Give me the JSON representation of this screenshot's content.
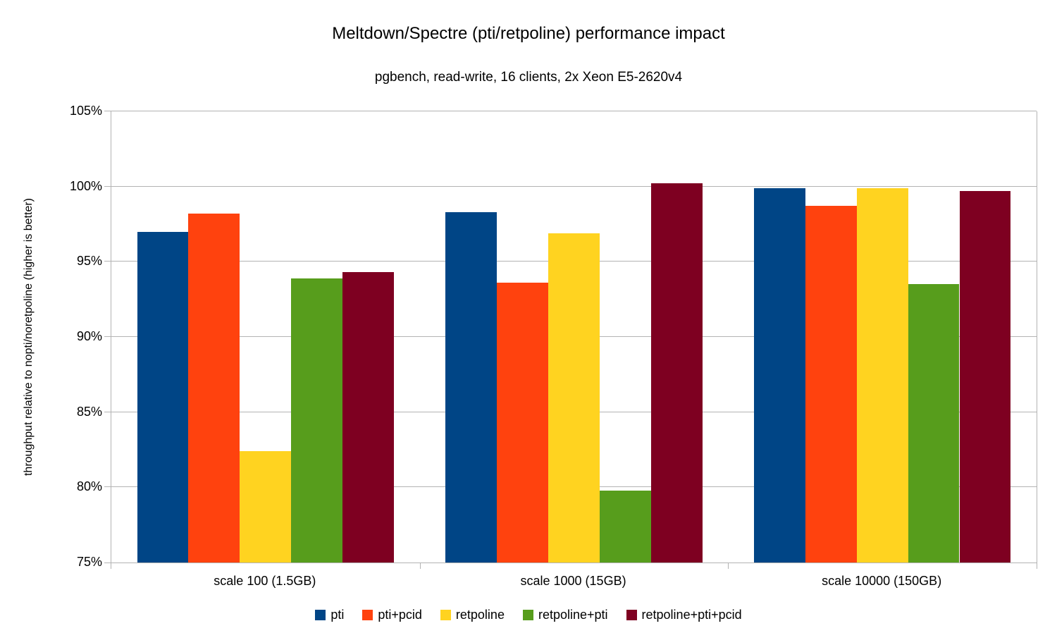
{
  "chart_data": {
    "type": "bar",
    "title": "Meltdown/Spectre (pti/retpoline) performance impact",
    "subtitle": "pgbench, read-write, 16 clients, 2x Xeon E5-2620v4",
    "ylabel": "throughput relative to nopti/noretpoline (higher is better)",
    "xlabel": "",
    "ylim": [
      75,
      105
    ],
    "ytick_step": 5,
    "ytick_labels": [
      "75%",
      "80%",
      "85%",
      "90%",
      "95%",
      "100%",
      "105%"
    ],
    "grid": true,
    "legend_position": "bottom",
    "categories": [
      "scale 100 (1.5GB)",
      "scale 1000 (15GB)",
      "scale 10000 (150GB)"
    ],
    "series": [
      {
        "name": "pti",
        "color": "#004586",
        "values": [
          97.0,
          98.3,
          99.9
        ]
      },
      {
        "name": "pti+pcid",
        "color": "#ff420e",
        "values": [
          98.2,
          93.6,
          98.7
        ]
      },
      {
        "name": "retpoline",
        "color": "#ffd320",
        "values": [
          82.4,
          96.9,
          99.9
        ]
      },
      {
        "name": "retpoline+pti",
        "color": "#579d1c",
        "values": [
          93.9,
          79.8,
          93.5
        ]
      },
      {
        "name": "retpoline+pti+pcid",
        "color": "#7e0021",
        "values": [
          94.3,
          100.2,
          99.7
        ]
      }
    ],
    "colors": {
      "grid": "#b3b3b3",
      "axis": "#b3b3b3",
      "text": "#000000",
      "background": "#ffffff"
    }
  }
}
